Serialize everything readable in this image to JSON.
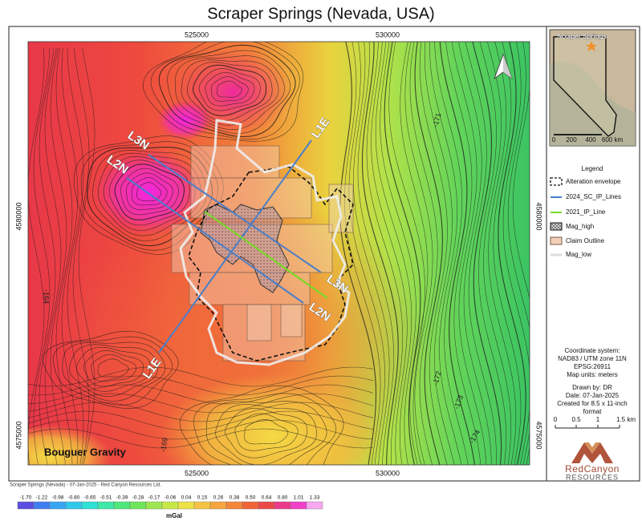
{
  "title": "Scraper Springs (Nevada, USA)",
  "map": {
    "x_labels": [
      "525000",
      "530000"
    ],
    "y_labels": [
      "4580000",
      "4575000"
    ],
    "contour_labels": [
      "-164",
      "-169",
      "-171",
      "-172",
      "-173",
      "-174"
    ],
    "line_labels": [
      "L3N",
      "L2N",
      "L1E",
      "L3N",
      "L2N",
      "L1E"
    ],
    "layer_label": "Bouguer Gravity"
  },
  "inset": {
    "label": "Scraper Springs",
    "scale_labels": [
      "0",
      "200",
      "400",
      "600 km"
    ]
  },
  "legend": {
    "title": "Legend",
    "items": [
      "Alteration envelope",
      "2024_SC_IP_Lines",
      "2021_IP_Line",
      "Mag_high",
      "Claim Outline",
      "Mag_low"
    ]
  },
  "info": [
    "Coordinate system:",
    "NAD83 / UTM zone 11N",
    "EPSG:26911",
    "Map units: meters"
  ],
  "credits": [
    "Drawn by: DR",
    "Date: 07-Jan-2025",
    "Created for 8.5 x 11-inch",
    "format"
  ],
  "scale_bar": [
    "0",
    "0.5",
    "1",
    "1.5 km"
  ],
  "logo": {
    "name": "RedCanyon",
    "subtitle": "RESOURCES"
  },
  "footer": "Scraper Springs (Nevada) - 07-Jan-2025 - Red Canyon Resources Ltd.",
  "colorbar": {
    "labels": [
      "-1.70",
      "-1.22",
      "-0.98",
      "-0.80",
      "-0.65",
      "-0.51",
      "-0.39",
      "-0.28",
      "-0.17",
      "-0.06",
      "0.04",
      "0.15",
      "0.26",
      "0.38",
      "0.50",
      "0.64",
      "0.80",
      "1.01",
      "1.33"
    ],
    "colors": [
      "#5a4de0",
      "#3f7ef0",
      "#36a6f4",
      "#2fc9ec",
      "#2fe0d4",
      "#3ee8a8",
      "#4ee67a",
      "#6ee45a",
      "#9ee650",
      "#c8e848",
      "#ece246",
      "#f6c444",
      "#f7a63e",
      "#f4863a",
      "#f06438",
      "#ec4848",
      "#ec3a8a",
      "#f040c8",
      "#f6a8f0"
    ],
    "unit": "mGal"
  }
}
